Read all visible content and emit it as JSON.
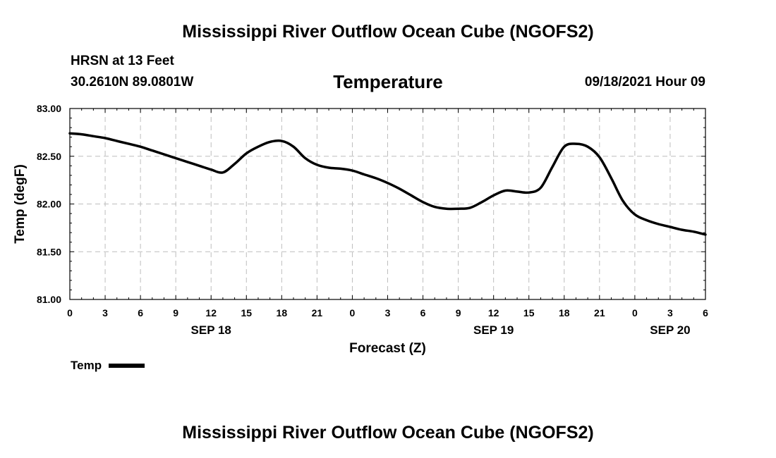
{
  "header": {
    "title": "Mississippi River Outflow Ocean Cube (NGOFS2)",
    "station": "HRSN at 13 Feet",
    "coords": "30.2610N  89.0801W",
    "plot_title": "Temperature",
    "valid_time": "09/18/2021 Hour 09"
  },
  "footer": {
    "title": "Mississippi River Outflow Ocean Cube (NGOFS2)"
  },
  "chart_data": {
    "type": "line",
    "title": "Temperature",
    "xlabel": "Forecast (Z)",
    "ylabel": "Temp (degF)",
    "xlim": [
      0,
      54
    ],
    "ylim": [
      81.0,
      83.0
    ],
    "yticks": [
      "81.00",
      "81.50",
      "82.00",
      "82.50",
      "83.00"
    ],
    "ytick_values": [
      81.0,
      81.5,
      82.0,
      82.5,
      83.0
    ],
    "xtick_values": [
      0,
      3,
      6,
      9,
      12,
      15,
      18,
      21,
      24,
      27,
      30,
      33,
      36,
      39,
      42,
      45,
      48,
      51,
      54
    ],
    "xtick_labels": [
      "0",
      "3",
      "6",
      "9",
      "12",
      "15",
      "18",
      "21",
      "0",
      "3",
      "6",
      "9",
      "12",
      "15",
      "18",
      "21",
      "0",
      "3",
      "6"
    ],
    "day_labels": [
      {
        "x": 12,
        "label": "SEP 18"
      },
      {
        "x": 36,
        "label": "SEP 19"
      },
      {
        "x": 51,
        "label": "SEP 20"
      }
    ],
    "grid": true,
    "series": [
      {
        "name": "Temp",
        "x": [
          0,
          1,
          2,
          3,
          4,
          5,
          6,
          7,
          8,
          9,
          10,
          11,
          12,
          13,
          14,
          15,
          16,
          17,
          18,
          19,
          20,
          21,
          22,
          23,
          24,
          25,
          26,
          27,
          28,
          29,
          30,
          31,
          32,
          33,
          34,
          35,
          36,
          37,
          38,
          39,
          40,
          41,
          42,
          43,
          44,
          45,
          46,
          47,
          48,
          49,
          50,
          51,
          52,
          53,
          54
        ],
        "values": [
          82.74,
          82.73,
          82.71,
          82.69,
          82.66,
          82.63,
          82.6,
          82.56,
          82.52,
          82.48,
          82.44,
          82.4,
          82.36,
          82.33,
          82.42,
          82.53,
          82.6,
          82.65,
          82.66,
          82.6,
          82.48,
          82.41,
          82.38,
          82.37,
          82.35,
          82.31,
          82.27,
          82.22,
          82.16,
          82.09,
          82.02,
          81.97,
          81.95,
          81.95,
          81.96,
          82.02,
          82.09,
          82.14,
          82.13,
          82.12,
          82.17,
          82.39,
          82.6,
          82.63,
          82.6,
          82.49,
          82.27,
          82.03,
          81.89,
          81.83,
          81.79,
          81.76,
          81.73,
          81.71,
          81.68
        ]
      }
    ],
    "legend": {
      "label": "Temp",
      "position": "bottom-left"
    }
  }
}
